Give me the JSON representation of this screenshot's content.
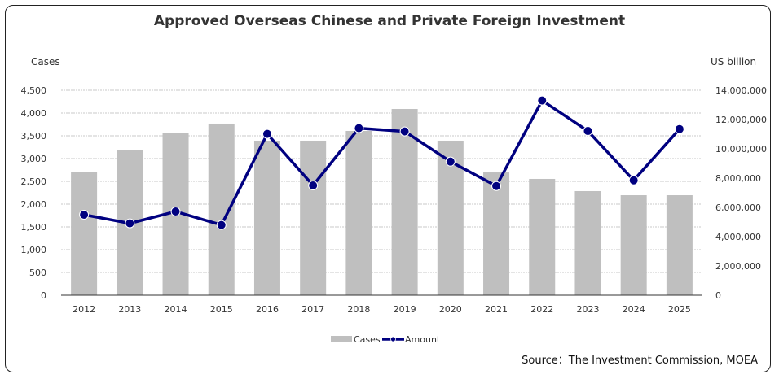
{
  "chart_data": {
    "type": "bar+line",
    "title": "Approved Overseas Chinese and Private Foreign Investment",
    "ylabel_left": "Cases",
    "ylabel_right": "US billion",
    "categories": [
      "2012",
      "2013",
      "2014",
      "2015",
      "2016",
      "2017",
      "2018",
      "2019",
      "2020",
      "2021",
      "2022",
      "2023",
      "2024",
      "2025"
    ],
    "series": [
      {
        "name": "Cases",
        "type": "bar",
        "axis": "left",
        "color": "#bfbfbf",
        "values": [
          2714,
          3179,
          3554,
          3768,
          3393,
          3393,
          3607,
          4089,
          3393,
          2696,
          2554,
          2286,
          2196,
          2196
        ]
      },
      {
        "name": "Amount",
        "type": "line",
        "axis": "right",
        "color": "#000080",
        "values": [
          5500000,
          4910000,
          5720000,
          4800000,
          11020000,
          7500000,
          11410000,
          11190000,
          9130000,
          7460000,
          13300000,
          11220000,
          7850000,
          11350000
        ]
      }
    ],
    "ylim_left": [
      0,
      4500
    ],
    "yticks_left": [
      "0",
      "500",
      "1,000",
      "1,500",
      "2,000",
      "2,500",
      "3,000",
      "3,500",
      "4,000",
      "4,500"
    ],
    "ylim_right": [
      0,
      14000000
    ],
    "yticks_right": [
      "0",
      "2,000,000",
      "4,000,000",
      "6,000,000",
      "8,000,000",
      "10,000,000",
      "12,000,000",
      "14,000,000"
    ],
    "grid": true,
    "legend_position": "bottom"
  },
  "source": "Source：The Investment Commission, MOEA"
}
